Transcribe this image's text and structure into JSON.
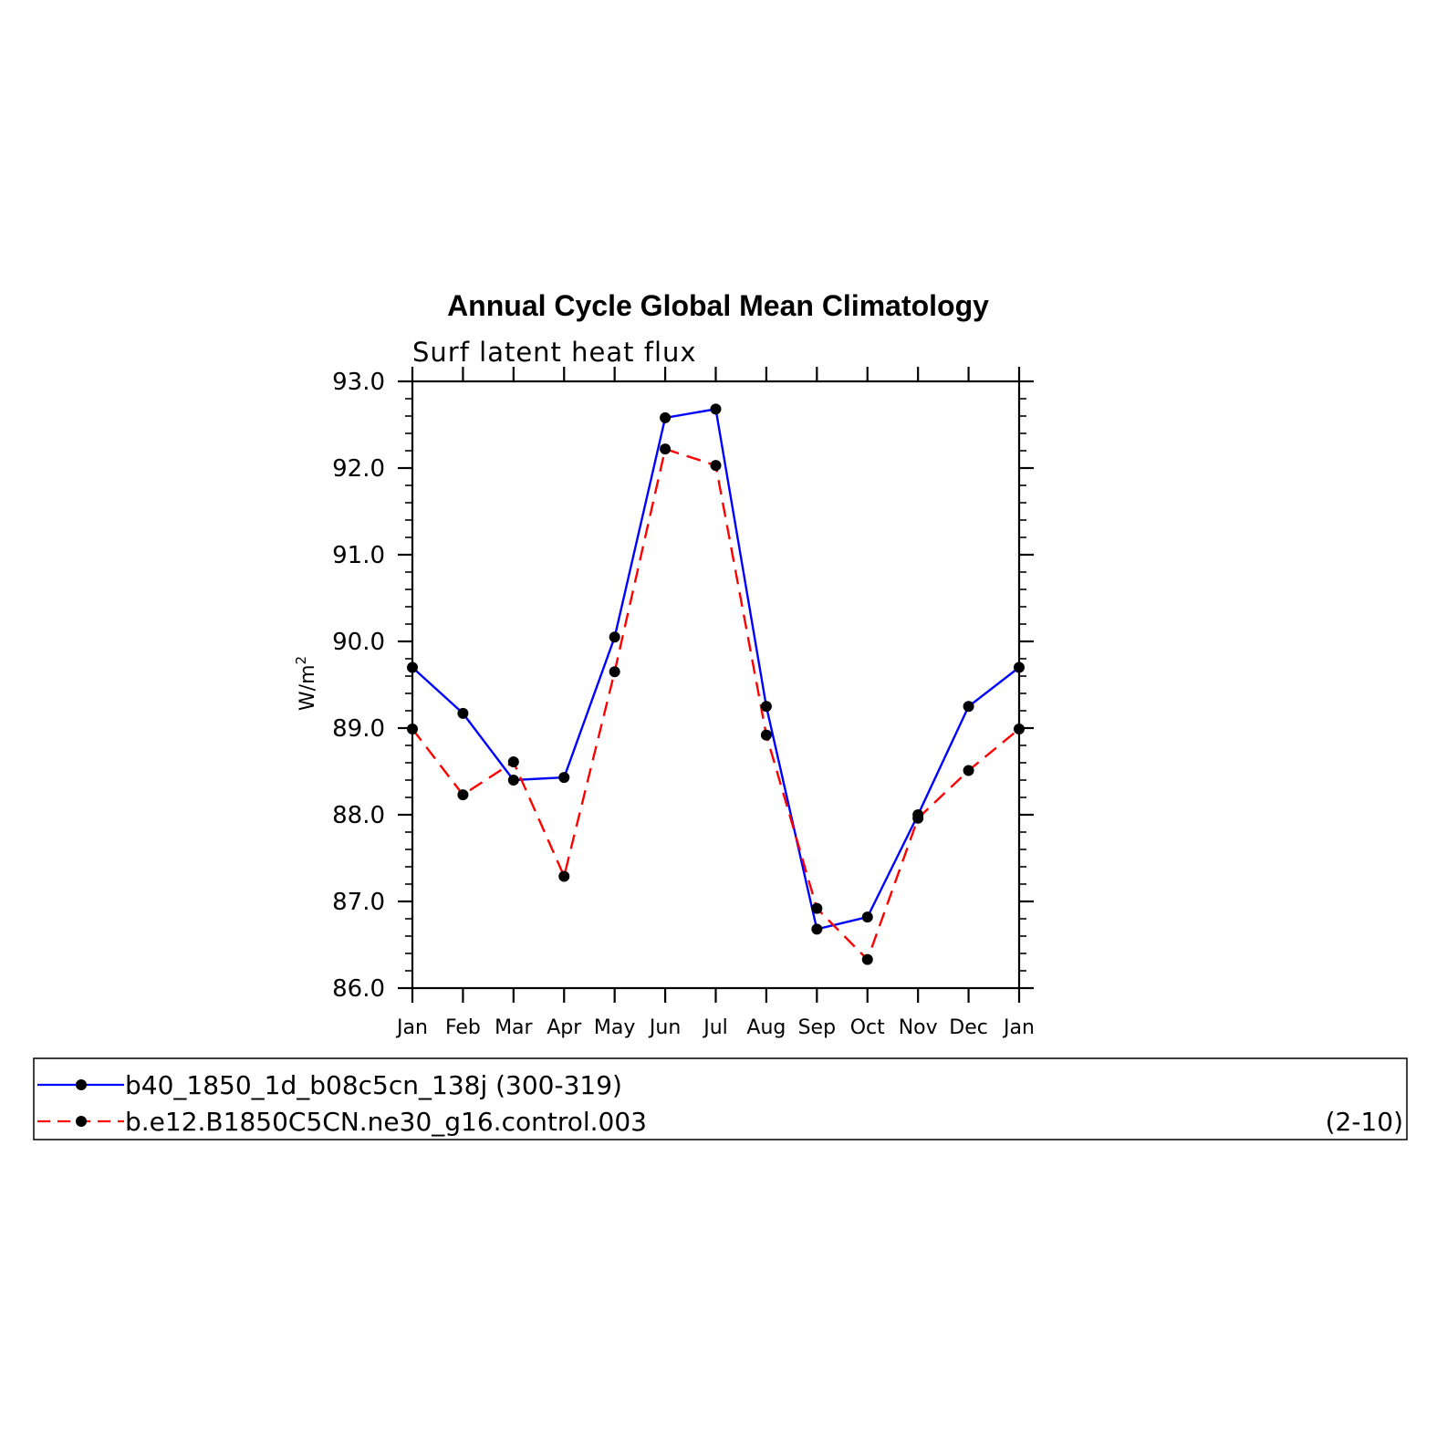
{
  "chart_data": {
    "type": "line",
    "title": "Annual Cycle Global Mean Climatology",
    "subtitle": "Surf latent heat flux",
    "ylabel": "W/m",
    "ylabel_sup": "2",
    "ylim": [
      86.0,
      93.0
    ],
    "yticks": [
      "86.0",
      "87.0",
      "88.0",
      "89.0",
      "90.0",
      "91.0",
      "92.0",
      "93.0"
    ],
    "categories": [
      "Jan",
      "Feb",
      "Mar",
      "Apr",
      "May",
      "Jun",
      "Jul",
      "Aug",
      "Sep",
      "Oct",
      "Nov",
      "Dec",
      "Jan"
    ],
    "grid": false,
    "legend_position": "bottom",
    "series": [
      {
        "name": "b40_1850_1d_b08c5cn_138j (300-319)",
        "color": "#0000ff",
        "dash": "solid",
        "values": [
          89.7,
          89.17,
          88.4,
          88.43,
          90.05,
          92.58,
          92.68,
          89.25,
          86.68,
          86.82,
          88.0,
          89.25,
          89.7
        ]
      },
      {
        "name": "b.e12.B1850C5CN.ne30_g16.control.003",
        "name_suffix": "(2-10)",
        "color": "#ff0000",
        "dash": "dashed",
        "values": [
          88.99,
          88.23,
          88.61,
          87.29,
          89.65,
          92.22,
          92.03,
          88.92,
          86.92,
          86.33,
          87.96,
          88.51,
          88.99
        ]
      }
    ]
  }
}
